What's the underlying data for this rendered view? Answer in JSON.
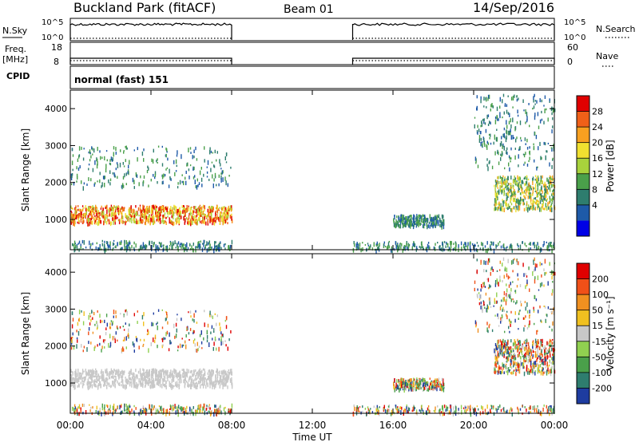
{
  "header": {
    "station": "Buckland Park (fitACF)",
    "beam": "Beam 01",
    "date": "14/Sep/2016"
  },
  "status_panel": {
    "nsky_label": "N.Sky",
    "nsky_ticks": [
      "10^5",
      "10^0"
    ],
    "nsearch_label": "N.Search",
    "nsearch_ticks": [
      "10^5",
      "10^0"
    ],
    "freq_label": "Freq.",
    "freq_unit": "[MHz]",
    "freq_ticks": [
      "18",
      "8"
    ],
    "nave_label": "Nave",
    "nave_ticks": [
      "60",
      "0"
    ],
    "cpid_label": "CPID",
    "cpid_text": "normal (fast) 151"
  },
  "chart_data": [
    {
      "type": "heatmap",
      "name": "power",
      "ylabel": "Slant Range [km]",
      "ylim": [
        180,
        4500
      ],
      "yticks": [
        1000,
        2000,
        3000,
        4000
      ],
      "xlim": [
        0,
        24
      ],
      "colorbar_label": "Power [dB]",
      "colorbar_ticks": [
        "28",
        "24",
        "20",
        "16",
        "12",
        "8",
        "4"
      ],
      "colors": [
        "#0000e6",
        "#1e5aa8",
        "#2e7d6e",
        "#4aa04a",
        "#a8d23c",
        "#f0e030",
        "#f8a020",
        "#f06018",
        "#e00000"
      ],
      "data_gaps": [
        [
          8,
          14
        ]
      ],
      "echo_regions": [
        {
          "x": [
            0.0,
            8.0
          ],
          "range": [
            930,
            1400
          ],
          "level": "high"
        },
        {
          "x": [
            0.0,
            8.0
          ],
          "range": [
            1900,
            3000
          ],
          "level": "low"
        },
        {
          "x": [
            0.0,
            8.0
          ],
          "range": [
            200,
            450
          ],
          "level": "low"
        },
        {
          "x": [
            14.0,
            24.0
          ],
          "range": [
            200,
            420
          ],
          "level": "low"
        },
        {
          "x": [
            16.0,
            18.5
          ],
          "range": [
            850,
            1150
          ],
          "level": "low"
        },
        {
          "x": [
            21.0,
            24.0
          ],
          "range": [
            1300,
            2200
          ],
          "level": "mid"
        },
        {
          "x": [
            20.0,
            24.0
          ],
          "range": [
            2400,
            4400
          ],
          "level": "low"
        }
      ]
    },
    {
      "type": "heatmap",
      "name": "velocity",
      "ylabel": "Slant Range [km]",
      "xlabel": "Time UT",
      "ylim": [
        180,
        4500
      ],
      "yticks": [
        1000,
        2000,
        3000,
        4000
      ],
      "xlim": [
        0,
        24
      ],
      "xticks": [
        "00:00",
        "04:00",
        "08:00",
        "12:00",
        "16:00",
        "20:00",
        "00:00"
      ],
      "colorbar_label": "Velocity [m s⁻¹]",
      "colorbar_ticks": [
        "200",
        "100",
        "50",
        "15",
        "-15",
        "-50",
        "-100",
        "-200"
      ],
      "colors": [
        "#1e3ca0",
        "#2e7d6e",
        "#4aa04a",
        "#90d050",
        "#c8c8c8",
        "#f0c020",
        "#f09020",
        "#f05018",
        "#e00000"
      ],
      "data_gaps": [
        [
          8,
          14
        ]
      ]
    }
  ]
}
